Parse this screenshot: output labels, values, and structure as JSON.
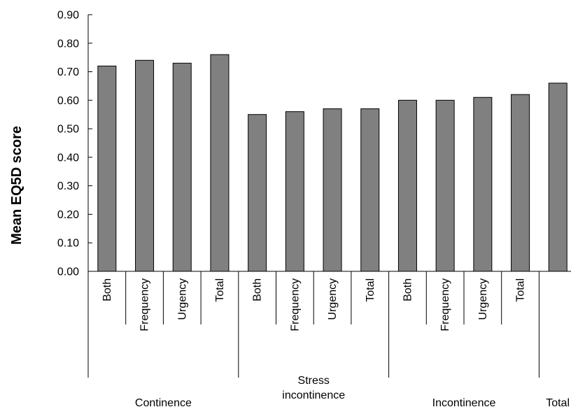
{
  "chart_data": {
    "type": "bar",
    "ylabel": "Mean EQ5D score",
    "ylim": [
      0,
      0.9
    ],
    "yticks": [
      "0.00",
      "0.10",
      "0.20",
      "0.30",
      "0.40",
      "0.50",
      "0.60",
      "0.70",
      "0.80",
      "0.90"
    ],
    "grid": false,
    "legend": "none",
    "bar_color": "#808080",
    "bar_edge_color": "#000000",
    "groups": [
      {
        "label_lines": [
          "Continence"
        ],
        "categories": [
          "Both",
          "Frequency",
          "Urgency",
          "Total"
        ],
        "values": [
          0.72,
          0.74,
          0.73,
          0.76
        ]
      },
      {
        "label_lines": [
          "Stress",
          "incontinence"
        ],
        "categories": [
          "Both",
          "Frequency",
          "Urgency",
          "Total"
        ],
        "values": [
          0.55,
          0.56,
          0.57,
          0.57
        ]
      },
      {
        "label_lines": [
          "Incontinence"
        ],
        "categories": [
          "Both",
          "Frequency",
          "Urgency",
          "Total"
        ],
        "values": [
          0.6,
          0.6,
          0.61,
          0.62
        ]
      },
      {
        "label_lines": [
          "Total"
        ],
        "categories": [
          ""
        ],
        "values": [
          0.66
        ]
      }
    ]
  }
}
